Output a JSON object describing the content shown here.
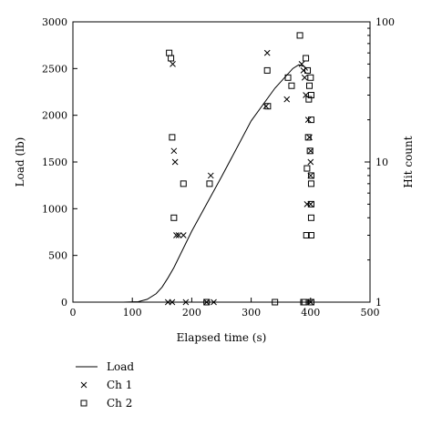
{
  "chart_data": {
    "type": "line",
    "xlabel": "Elapsed time (s)",
    "ylabel": "Load (lb)",
    "y2label": "Hit count",
    "xlim": [
      0,
      500
    ],
    "ylim": [
      0,
      3000
    ],
    "y2lim": [
      1,
      100
    ],
    "y2scale": "log",
    "grid": false,
    "legend_position": "bottom-left",
    "xticks": [
      0,
      100,
      200,
      300,
      400,
      500
    ],
    "yticks": [
      0,
      500,
      1000,
      1500,
      2000,
      2500,
      3000
    ],
    "y2ticks": [
      1,
      10,
      100
    ],
    "series": [
      {
        "name": "Load",
        "marker": "line",
        "x": [
          85,
          110,
          125,
          140,
          150,
          160,
          170,
          200,
          250,
          300,
          340,
          370,
          380,
          390,
          395
        ],
        "y": [
          0,
          5,
          30,
          90,
          160,
          260,
          370,
          760,
          1340,
          1940,
          2290,
          2500,
          2540,
          2520,
          2480
        ]
      },
      {
        "name": "Ch 1",
        "marker": "x",
        "x": [
          160,
          167,
          168,
          170,
          172,
          174,
          178,
          186,
          190,
          225,
          232,
          237,
          325,
          327,
          360,
          385,
          388,
          390,
          392,
          394,
          396,
          398,
          400,
          400,
          400,
          400,
          400
        ],
        "y": [
          1,
          1,
          50,
          12,
          10,
          3,
          3,
          3,
          1,
          1,
          8,
          1,
          25,
          60,
          28,
          50,
          45,
          40,
          30,
          5,
          20,
          15,
          12,
          10,
          8,
          5,
          1
        ],
        "y_axis": "right"
      },
      {
        "name": "Ch 2",
        "marker": "square",
        "x": [
          162,
          165,
          167,
          170,
          186,
          225,
          230,
          327,
          328,
          340,
          362,
          368,
          382,
          388,
          390,
          392,
          393,
          394,
          395,
          396,
          397,
          398,
          399,
          400,
          401,
          401,
          401,
          401,
          401,
          401,
          401,
          401
        ],
        "y": [
          60,
          55,
          15,
          4,
          7,
          1,
          7,
          45,
          25,
          1,
          40,
          35,
          80,
          1,
          1,
          55,
          3,
          9,
          45,
          15,
          28,
          35,
          12,
          40,
          8,
          3,
          7,
          1,
          20,
          4,
          30,
          5
        ],
        "y_axis": "right"
      }
    ]
  }
}
